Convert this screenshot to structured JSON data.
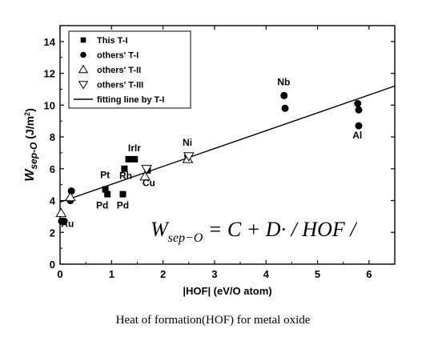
{
  "chart_data": {
    "type": "scatter",
    "xlabel": "|HOF|  (eV/O atom)",
    "ylabel": "W",
    "ylabel_sub": "sep-O",
    "ylabel_unit": " (J/m",
    "ylabel_unit_sup": "2",
    "ylabel_unit_close": ")",
    "xlim": [
      0,
      6.5
    ],
    "ylim": [
      0,
      15
    ],
    "x_ticks": [
      0,
      1,
      2,
      3,
      4,
      5,
      6
    ],
    "y_ticks": [
      0,
      2,
      4,
      6,
      8,
      10,
      12,
      14
    ],
    "legend_position": "top-left",
    "series": [
      {
        "name": "This T-I",
        "marker": "square",
        "x": [
          0.88,
          0.92,
          1.22,
          1.25,
          1.33,
          1.45,
          1.7
        ],
        "y": [
          4.7,
          4.4,
          4.4,
          6.0,
          6.6,
          6.6,
          5.9
        ]
      },
      {
        "name": "others' T-I",
        "marker": "circle",
        "x": [
          0.03,
          0.08,
          0.2,
          0.22,
          2.48,
          4.35,
          4.37,
          5.78,
          5.8,
          5.8
        ],
        "y": [
          2.7,
          2.7,
          4.0,
          4.6,
          6.8,
          10.6,
          9.8,
          10.1,
          9.7,
          8.7
        ]
      },
      {
        "name": "others' T-II",
        "marker": "triangle-up",
        "x": [
          0.02,
          0.2,
          1.65,
          2.48
        ],
        "y": [
          3.2,
          4.2,
          5.5,
          6.6
        ]
      },
      {
        "name": "others' T-III",
        "marker": "triangle-down",
        "x": [
          1.68,
          2.5
        ],
        "y": [
          6.0,
          6.8
        ]
      },
      {
        "name": "fitting line by T-I",
        "marker": "line",
        "x": [
          0,
          6.5
        ],
        "y": [
          3.9,
          11.2
        ]
      }
    ],
    "annotations": [
      {
        "text": "Au",
        "x": 0.02,
        "y": 2.35
      },
      {
        "text": "Pt",
        "x": 0.78,
        "y": 5.4
      },
      {
        "text": "Pd",
        "x": 0.7,
        "y": 3.5
      },
      {
        "text": "Pd",
        "x": 1.1,
        "y": 3.5
      },
      {
        "text": "Rh",
        "x": 1.15,
        "y": 5.35
      },
      {
        "text": "IrIr",
        "x": 1.32,
        "y": 7.1
      },
      {
        "text": "Cu",
        "x": 1.6,
        "y": 4.9
      },
      {
        "text": "Ni",
        "x": 2.38,
        "y": 7.45
      },
      {
        "text": "Nb",
        "x": 4.22,
        "y": 11.25
      },
      {
        "text": "Al",
        "x": 5.68,
        "y": 7.9
      }
    ],
    "formula": "W_sep−O = C + D· / HOF /"
  },
  "formula": {
    "w": "W",
    "sub": "sep−O",
    "rest": " = C + D· /  HOF  /"
  },
  "caption": "Heat of formation(HOF) for metal oxide"
}
